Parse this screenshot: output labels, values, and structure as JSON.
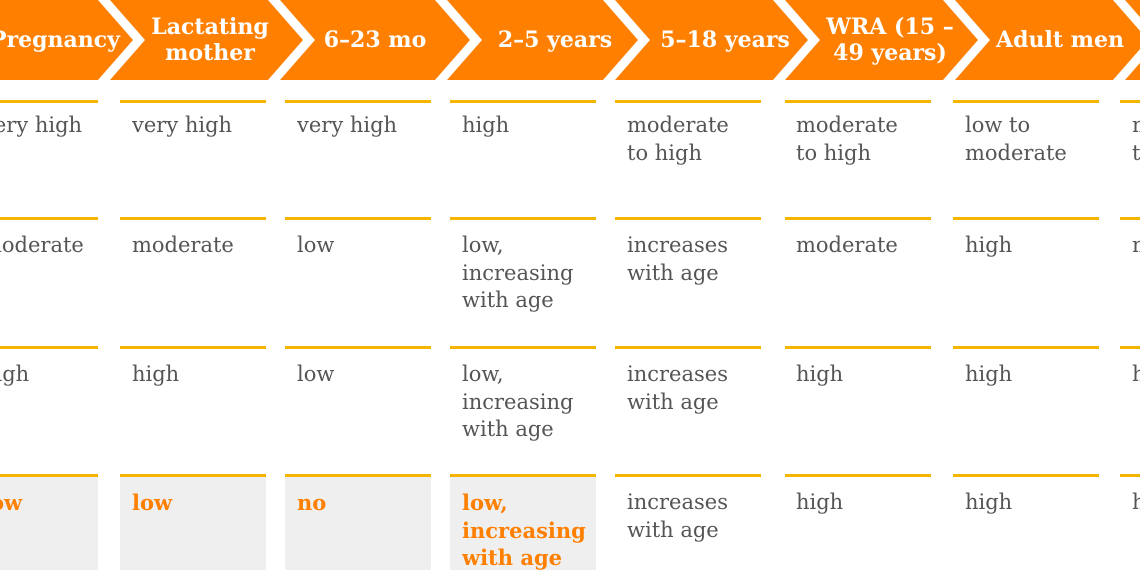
{
  "colors": {
    "accent": "#ff7f00",
    "rule": "#f5b400",
    "text": "#555555",
    "shade": "#efefef"
  },
  "columns": [
    {
      "header": "Pregnancy"
    },
    {
      "header": "Lactating\nmother"
    },
    {
      "header": "6–23 mo"
    },
    {
      "header": "2–5 years"
    },
    {
      "header": "5–18 years"
    },
    {
      "header": "WRA (15 –\n49 years)"
    },
    {
      "header": "Adult men"
    },
    {
      "header": ""
    }
  ],
  "rows": [
    {
      "cells": [
        {
          "text": "very high"
        },
        {
          "text": "very high"
        },
        {
          "text": "very high"
        },
        {
          "text": "high"
        },
        {
          "text": "moderate\nto high"
        },
        {
          "text": "moderate\nto high"
        },
        {
          "text": "low to\nmoderate"
        },
        {
          "text": "m\nt"
        }
      ]
    },
    {
      "cells": [
        {
          "text": "moderate"
        },
        {
          "text": "moderate"
        },
        {
          "text": "low"
        },
        {
          "text": "low,\nincreasing\nwith age"
        },
        {
          "text": "increases\nwith age"
        },
        {
          "text": "moderate"
        },
        {
          "text": "high"
        },
        {
          "text": "m"
        }
      ]
    },
    {
      "cells": [
        {
          "text": "high"
        },
        {
          "text": "high"
        },
        {
          "text": "low"
        },
        {
          "text": "low,\nincreasing\nwith age"
        },
        {
          "text": "increases\nwith age"
        },
        {
          "text": "high"
        },
        {
          "text": "high"
        },
        {
          "text": "h"
        }
      ]
    },
    {
      "cells": [
        {
          "text": "low",
          "highlight": true
        },
        {
          "text": "low",
          "highlight": true
        },
        {
          "text": "no",
          "highlight": true
        },
        {
          "text": "low,\nincreasing\nwith age",
          "highlight": true
        },
        {
          "text": "increases\nwith age"
        },
        {
          "text": "high"
        },
        {
          "text": "high"
        },
        {
          "text": "h"
        }
      ]
    }
  ]
}
